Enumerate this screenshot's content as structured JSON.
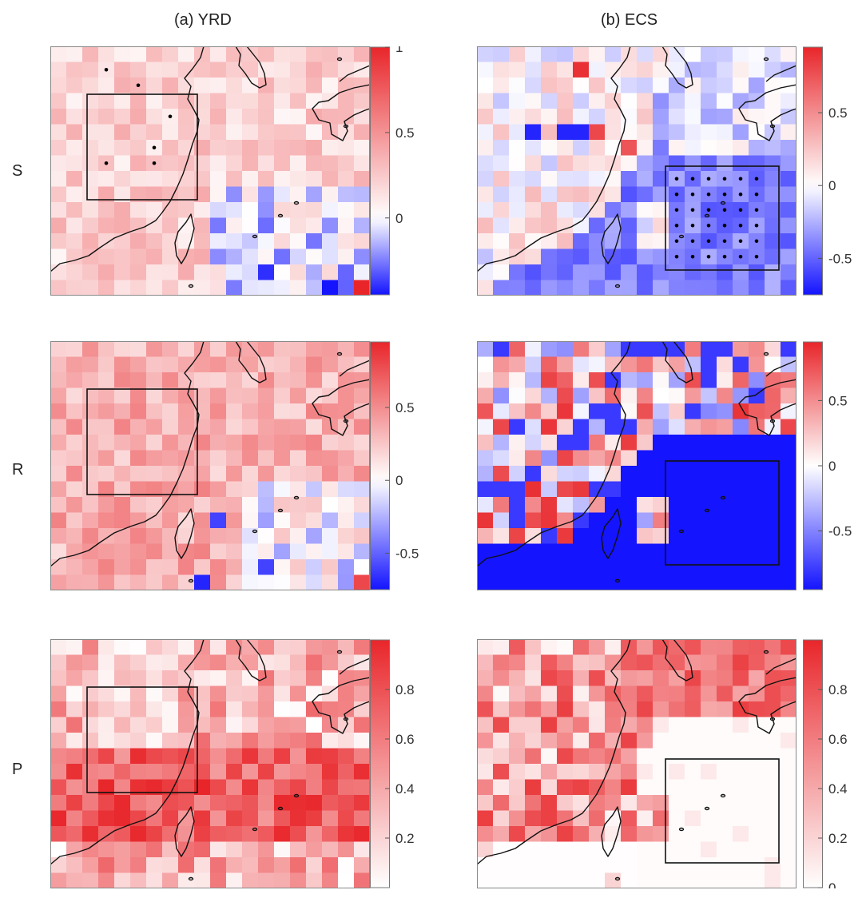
{
  "column_titles": [
    "(a) YRD",
    "(b) ECS"
  ],
  "row_labels": [
    "S",
    "R",
    "P"
  ],
  "colors": {
    "negative": "#1414ff",
    "neutral": "#ffffff",
    "positive": "#e8262a",
    "coast": "#111111",
    "box": "#111111"
  },
  "grid": {
    "cols": 20,
    "rows": 16
  },
  "panels": [
    {
      "id": "a-S",
      "col": 0,
      "row": 0,
      "cmin": -0.45,
      "cmax": 1.0,
      "ticks": [
        1,
        0.5,
        0
      ],
      "pattern": "yrd_s",
      "box": "yrd",
      "stipple": [
        [
          3,
          1
        ],
        [
          5,
          2
        ],
        [
          7,
          4
        ],
        [
          6,
          6
        ],
        [
          3,
          7
        ],
        [
          6,
          7
        ]
      ]
    },
    {
      "id": "b-S",
      "col": 1,
      "row": 0,
      "cmin": -0.75,
      "cmax": 0.95,
      "ticks": [
        0.5,
        0,
        -0.5
      ],
      "pattern": "ecs_s",
      "box": "ecs",
      "stipple": "box"
    },
    {
      "id": "a-R",
      "col": 0,
      "row": 1,
      "cmin": -0.75,
      "cmax": 0.95,
      "ticks": [
        0.5,
        0,
        -0.5
      ],
      "pattern": "yrd_r",
      "box": "yrd",
      "stipple": []
    },
    {
      "id": "b-R",
      "col": 1,
      "row": 1,
      "cmin": -0.95,
      "cmax": 0.95,
      "ticks": [
        0.5,
        0,
        -0.5
      ],
      "pattern": "ecs_r",
      "box": "ecs",
      "stipple": []
    },
    {
      "id": "a-P",
      "col": 0,
      "row": 2,
      "cmin": 0.0,
      "cmax": 1.0,
      "ticks": [
        0.8,
        0.6,
        0.4,
        0.2
      ],
      "pattern": "yrd_p",
      "box": "yrd",
      "stipple": []
    },
    {
      "id": "b-P",
      "col": 1,
      "row": 2,
      "cmin": 0.0,
      "cmax": 1.0,
      "ticks": [
        0.8,
        0.6,
        0.4,
        0.2,
        0
      ],
      "pattern": "ecs_p",
      "box": "ecs",
      "stipple": []
    }
  ]
}
